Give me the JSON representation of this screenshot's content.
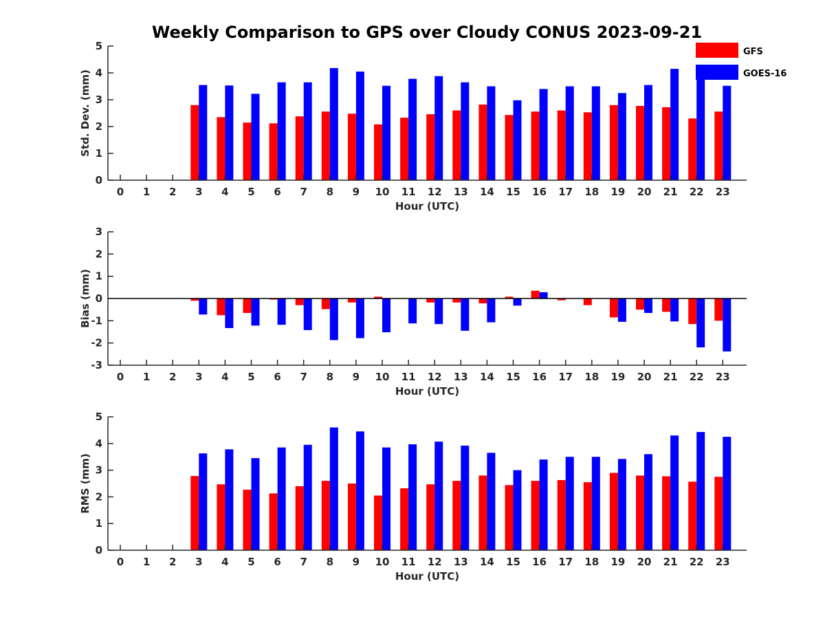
{
  "title": "Weekly Comparison to GPS over Cloudy CONUS 2023-09-21",
  "legend": {
    "placement": "top-right",
    "entries": [
      {
        "label": "GFS",
        "color": "#ff0000"
      },
      {
        "label": "GOES-16",
        "color": "#0000ff"
      }
    ]
  },
  "chart_data": [
    {
      "type": "bar",
      "xlabel": "Hour (UTC)",
      "ylabel": "Std. Dev. (mm)",
      "ylim": [
        0,
        5
      ],
      "yticks": [
        0,
        1,
        2,
        3,
        4,
        5
      ],
      "categories": [
        "0",
        "1",
        "2",
        "3",
        "4",
        "5",
        "6",
        "7",
        "8",
        "9",
        "10",
        "11",
        "12",
        "13",
        "14",
        "15",
        "16",
        "17",
        "18",
        "19",
        "20",
        "21",
        "22",
        "23"
      ],
      "series": [
        {
          "name": "GFS",
          "color": "#ff0000",
          "values": [
            null,
            null,
            null,
            2.8,
            2.35,
            2.15,
            2.12,
            2.38,
            2.56,
            2.48,
            2.08,
            2.33,
            2.46,
            2.6,
            2.82,
            2.43,
            2.56,
            2.6,
            2.53,
            2.8,
            2.77,
            2.72,
            2.3,
            2.56
          ]
        },
        {
          "name": "GOES-16",
          "color": "#0000ff",
          "values": [
            null,
            null,
            null,
            3.55,
            3.53,
            3.22,
            3.65,
            3.65,
            4.18,
            4.05,
            3.52,
            3.78,
            3.88,
            3.65,
            3.5,
            2.98,
            3.4,
            3.5,
            3.5,
            3.25,
            3.55,
            4.15,
            3.82,
            3.52
          ]
        }
      ]
    },
    {
      "type": "bar",
      "xlabel": "Hour (UTC)",
      "ylabel": "Bias (mm)",
      "ylim": [
        -3,
        3
      ],
      "yticks": [
        -3,
        -2,
        -1,
        0,
        1,
        2,
        3
      ],
      "categories": [
        "0",
        "1",
        "2",
        "3",
        "4",
        "5",
        "6",
        "7",
        "8",
        "9",
        "10",
        "11",
        "12",
        "13",
        "14",
        "15",
        "16",
        "17",
        "18",
        "19",
        "20",
        "21",
        "22",
        "23"
      ],
      "series": [
        {
          "name": "GFS",
          "color": "#ff0000",
          "values": [
            null,
            null,
            null,
            -0.1,
            -0.75,
            -0.65,
            -0.05,
            -0.3,
            -0.48,
            -0.18,
            0.08,
            0.02,
            -0.18,
            -0.18,
            -0.22,
            0.08,
            0.35,
            -0.08,
            -0.3,
            -0.85,
            -0.5,
            -0.6,
            -1.15,
            -1.0
          ]
        },
        {
          "name": "GOES-16",
          "color": "#0000ff",
          "values": [
            null,
            null,
            null,
            -0.72,
            -1.33,
            -1.22,
            -1.18,
            -1.42,
            -1.87,
            -1.78,
            -1.52,
            -1.12,
            -1.15,
            -1.45,
            -1.07,
            -0.32,
            0.28,
            0.0,
            0.0,
            -1.05,
            -0.65,
            -1.03,
            -2.2,
            -2.38
          ]
        }
      ]
    },
    {
      "type": "bar",
      "xlabel": "Hour (UTC)",
      "ylabel": "RMS (mm)",
      "ylim": [
        0,
        5
      ],
      "yticks": [
        0,
        1,
        2,
        3,
        4,
        5
      ],
      "categories": [
        "0",
        "1",
        "2",
        "3",
        "4",
        "5",
        "6",
        "7",
        "8",
        "9",
        "10",
        "11",
        "12",
        "13",
        "14",
        "15",
        "16",
        "17",
        "18",
        "19",
        "20",
        "21",
        "22",
        "23"
      ],
      "series": [
        {
          "name": "GFS",
          "color": "#ff0000",
          "values": [
            null,
            null,
            null,
            2.78,
            2.47,
            2.27,
            2.13,
            2.4,
            2.6,
            2.5,
            2.05,
            2.32,
            2.47,
            2.6,
            2.8,
            2.44,
            2.6,
            2.63,
            2.55,
            2.9,
            2.8,
            2.77,
            2.57,
            2.75
          ]
        },
        {
          "name": "GOES-16",
          "color": "#0000ff",
          "values": [
            null,
            null,
            null,
            3.63,
            3.78,
            3.45,
            3.85,
            3.95,
            4.6,
            4.45,
            3.85,
            3.97,
            4.07,
            3.92,
            3.65,
            3.0,
            3.4,
            3.5,
            3.5,
            3.42,
            3.6,
            4.3,
            4.43,
            4.25
          ]
        }
      ]
    }
  ]
}
